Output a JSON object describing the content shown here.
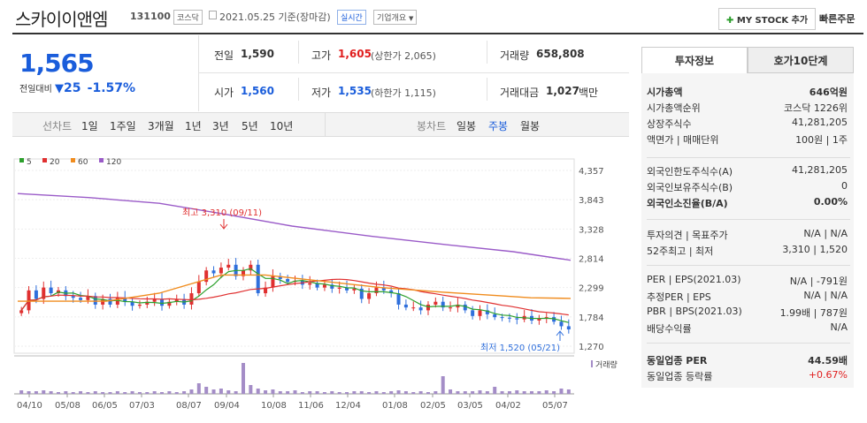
{
  "header": {
    "name": "스카이이앤엠",
    "code": "131100",
    "market": "코스닥",
    "date": "2021.05.25 기준(장마감)",
    "realtime": "실시간",
    "company_info": "기업개요",
    "my_stock": "MY STOCK 추가",
    "quick_order": "빠른주문"
  },
  "price": {
    "current": "1,565",
    "change_label": "전일대비",
    "change_amount": "25",
    "change_pct": "-1.57%"
  },
  "summary": {
    "prev_label": "전일",
    "prev": "1,590",
    "high_label": "고가",
    "high": "1,605",
    "upper_limit": "(상한가 2,065)",
    "volume_label": "거래량",
    "volume": "658,808",
    "open_label": "시가",
    "open": "1,560",
    "low_label": "저가",
    "low": "1,535",
    "lower_limit": "(하한가 1,115)",
    "amount_label": "거래대금",
    "amount": "1,027",
    "amount_unit": "백만"
  },
  "toolbar": {
    "line_chart": "선차트",
    "periods": [
      "1일",
      "1주일",
      "3개월",
      "1년",
      "3년",
      "5년",
      "10년"
    ],
    "candle_chart": "봉차트",
    "candle_periods": [
      "일봉",
      "주봉",
      "월봉"
    ]
  },
  "chart_data": {
    "type": "candlestick",
    "legend": [
      "5",
      "20",
      "60",
      "120"
    ],
    "legend_colors": [
      "#2ca02c",
      "#e03030",
      "#f08c1e",
      "#9a5bc8"
    ],
    "y_ticks": [
      "4,357",
      "3,843",
      "3,328",
      "2,814",
      "2,299",
      "1,784",
      "1,270"
    ],
    "x_ticks": [
      "04/10",
      "05/08",
      "06/05",
      "07/03",
      "08/07",
      "09/04",
      "10/08",
      "11/06",
      "12/04",
      "01/08",
      "02/05",
      "03/05",
      "04/02",
      "05/07"
    ],
    "high_annotation": "최고 3,310 (09/11)",
    "low_annotation": "최저 1,520 (05/21)",
    "volume_label": "거래량",
    "up_color": "#e03030",
    "down_color": "#2f6fdc"
  },
  "panel": {
    "tab_active": "투자정보",
    "tab_other": "호가10단계",
    "rows1": [
      {
        "label": "시가총액",
        "value": "646억원",
        "bold": true
      },
      {
        "label": "시가총액순위",
        "value": "코스닥 1226위"
      },
      {
        "label": "상장주식수",
        "value": "41,281,205"
      },
      {
        "label": "액면가 | 매매단위",
        "value": "100원 | 1주"
      }
    ],
    "rows2": [
      {
        "label": "외국인한도주식수(A)",
        "value": "41,281,205"
      },
      {
        "label": "외국인보유주식수(B)",
        "value": "0"
      },
      {
        "label": "외국인소진율(B/A)",
        "value": "0.00%",
        "bold": true
      }
    ],
    "rows3": [
      {
        "label": "투자의견 | 목표주가",
        "value": "N/A | N/A"
      },
      {
        "label": "52주최고 | 최저",
        "value": "3,310 | 1,520"
      }
    ],
    "rows4": [
      {
        "label": "PER | EPS(2021.03)",
        "value": "N/A | -791원"
      },
      {
        "label": "추정PER | EPS",
        "value": "N/A | N/A"
      },
      {
        "label": "PBR | BPS(2021.03)",
        "value": "1.99배 | 787원"
      },
      {
        "label": "배당수익률",
        "value": "N/A"
      }
    ],
    "rows5": [
      {
        "label": "동일업종 PER",
        "value": "44.59배",
        "bold": true
      },
      {
        "label": "동일업종 등락률",
        "value": "+0.67%",
        "red": true
      }
    ]
  }
}
